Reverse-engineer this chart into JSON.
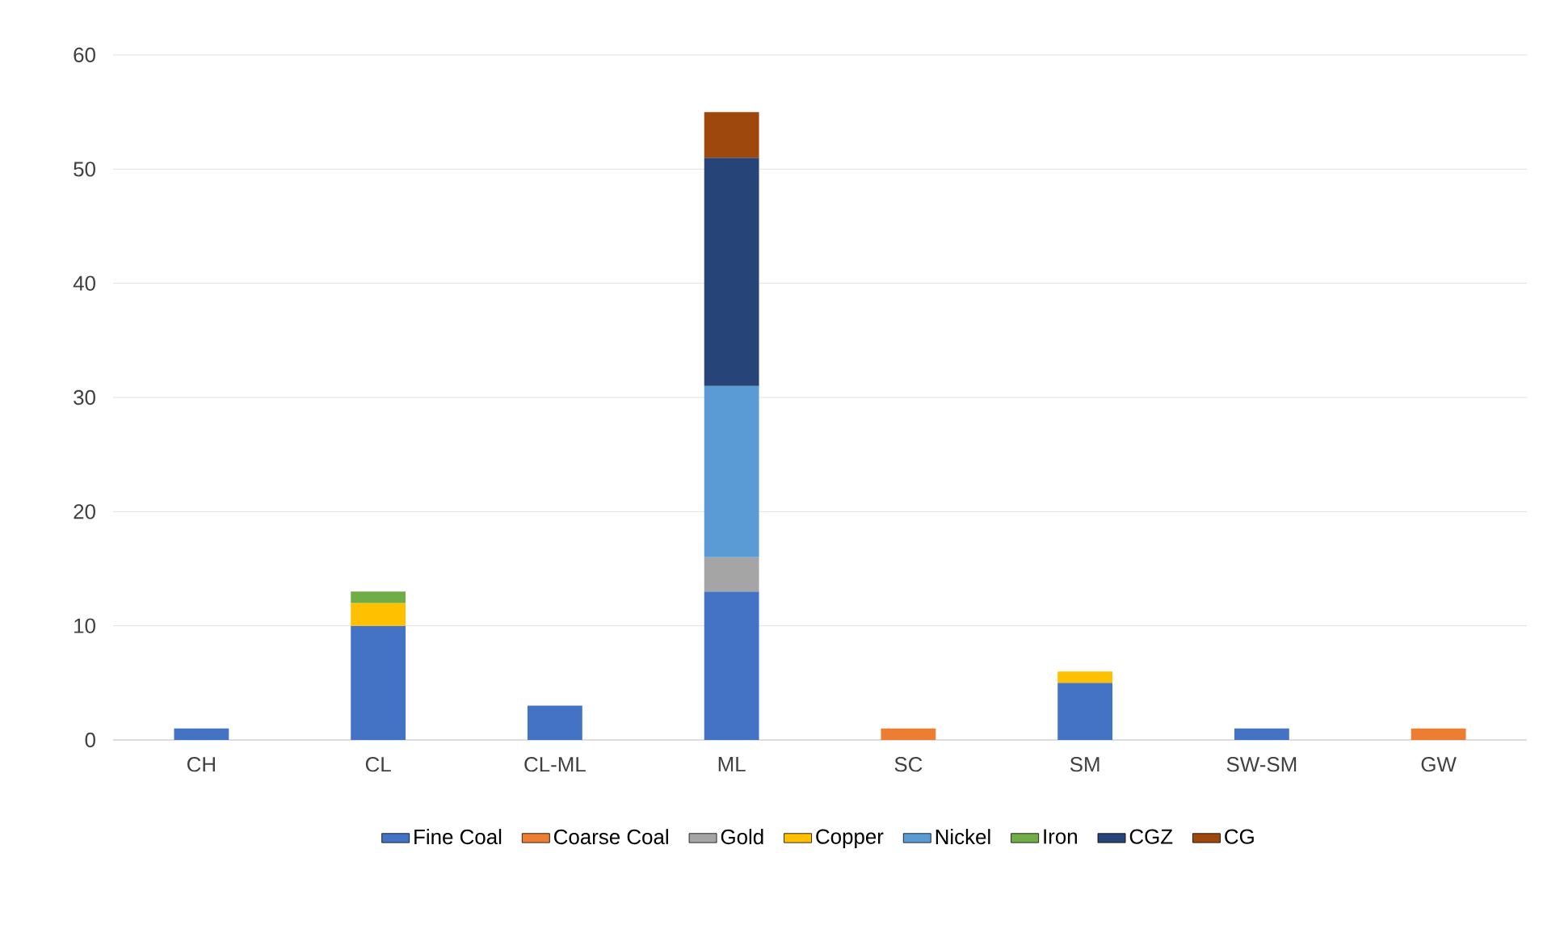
{
  "chart_data": {
    "type": "bar",
    "stacked": true,
    "categories": [
      "CH",
      "CL",
      "CL-ML",
      "ML",
      "SC",
      "SM",
      "SW-SM",
      "GW"
    ],
    "series": [
      {
        "name": "Fine Coal",
        "color": "#4472c4",
        "values": [
          1,
          10,
          3,
          13,
          null,
          5,
          1,
          null
        ]
      },
      {
        "name": "Coarse Coal",
        "color": "#ed7d31",
        "values": [
          null,
          null,
          null,
          null,
          1,
          null,
          null,
          1
        ]
      },
      {
        "name": "Gold",
        "color": "#a5a5a5",
        "values": [
          null,
          null,
          null,
          3,
          null,
          null,
          null,
          null
        ]
      },
      {
        "name": "Copper",
        "color": "#ffc000",
        "values": [
          null,
          2,
          null,
          null,
          null,
          1,
          null,
          null
        ]
      },
      {
        "name": "Nickel",
        "color": "#5b9bd5",
        "values": [
          null,
          null,
          null,
          15,
          null,
          null,
          null,
          null
        ]
      },
      {
        "name": "Iron",
        "color": "#70ad47",
        "values": [
          null,
          1,
          null,
          null,
          null,
          null,
          null,
          null
        ]
      },
      {
        "name": "CGZ",
        "color": "#264478",
        "values": [
          null,
          null,
          null,
          20,
          null,
          null,
          null,
          null
        ]
      },
      {
        "name": "CG",
        "color": "#9e480e",
        "values": [
          null,
          null,
          null,
          4,
          null,
          null,
          null,
          null
        ]
      }
    ],
    "ylim": [
      0,
      60
    ],
    "yticks": [
      0,
      10,
      20,
      30,
      40,
      50,
      60
    ],
    "grid": "y",
    "legend": "bottom"
  }
}
